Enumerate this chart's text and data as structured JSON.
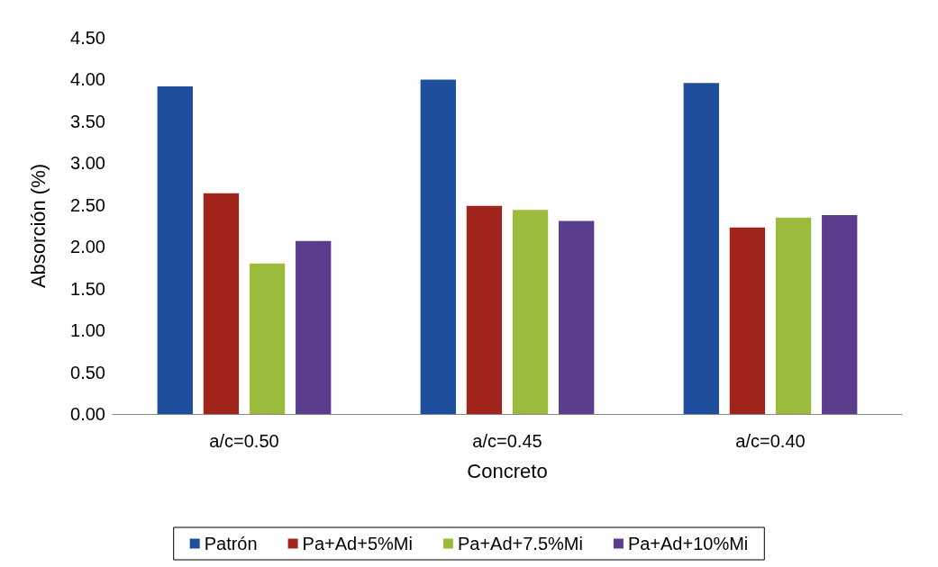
{
  "chart_data": {
    "type": "bar",
    "xlabel": "Concreto",
    "ylabel": "Absorción (%)",
    "categories": [
      "a/c=0.50",
      "a/c=0.45",
      "a/c=0.40"
    ],
    "series": [
      {
        "name": "Patrón",
        "color": "#1f4e9c",
        "values": [
          3.92,
          4.0,
          3.96
        ]
      },
      {
        "name": "Pa+Ad+5%Mi",
        "color": "#a0241c",
        "values": [
          2.64,
          2.49,
          2.23
        ]
      },
      {
        "name": "Pa+Ad+7.5%Mi",
        "color": "#9bbb3c",
        "values": [
          1.8,
          2.44,
          2.35
        ]
      },
      {
        "name": "Pa+Ad+10%Mi",
        "color": "#5b3d8e",
        "values": [
          2.07,
          2.31,
          2.38
        ]
      }
    ],
    "ylim": [
      0,
      4.5
    ],
    "yticks": [
      {
        "value": 0,
        "label": "0.00"
      },
      {
        "value": 0.5,
        "label": "0.50"
      },
      {
        "value": 1,
        "label": "1.00"
      },
      {
        "value": 1.5,
        "label": "1.50"
      },
      {
        "value": 2,
        "label": "2.00"
      },
      {
        "value": 2.5,
        "label": "2.50"
      },
      {
        "value": 3,
        "label": "3.00"
      },
      {
        "value": 3.5,
        "label": "3.50"
      },
      {
        "value": 4,
        "label": "4.00"
      },
      {
        "value": 4.5,
        "label": "4.50"
      }
    ],
    "grid": false,
    "legend": "bottom"
  }
}
